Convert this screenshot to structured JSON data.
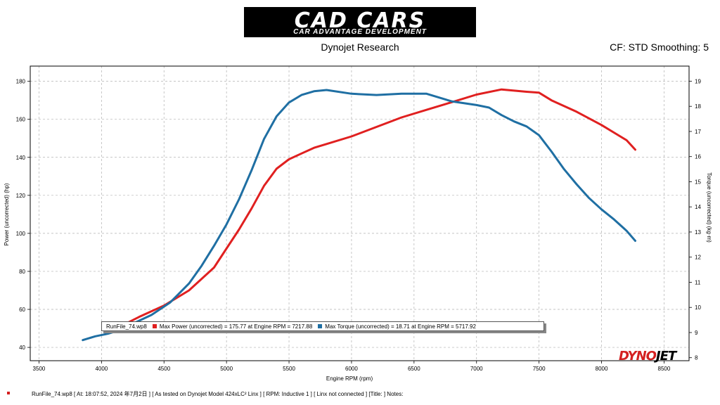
{
  "header": {
    "logo_main": "CAD CARS",
    "logo_sub": "CAR ADVANTAGE DEVELOPMENT",
    "subtitle": "Dynojet Research",
    "cf": "CF: STD Smoothing: 5"
  },
  "legend": {
    "file": "RunFile_74.wp8",
    "power": "Max Power (uncorrected) = 175.77 at Engine RPM = 7217.88",
    "torque": "Max Torque (uncorrected) = 18.71 at Engine RPM = 5717.92"
  },
  "footer": "RunFile_74.wp8  [  At:  18:07:52,  2024 年7月2日  ] [ As tested on Dynojet Model 424xLC² Linx  ] [ RPM: Inductive 1  ] [ Linx not connected  ] [Title:  ]   Notes:",
  "brand": {
    "a": "DYNO",
    "b": "JET"
  },
  "colors": {
    "power": "#e02020",
    "torque": "#1f6fa3",
    "grid": "#b0b0b0"
  },
  "chart_data": {
    "type": "line",
    "xlabel": "Engine RPM (rpm)",
    "ylabel_left": "Power (uncorrected) (hp)",
    "ylabel_right": "Torque (uncorrected) (kg·m)",
    "xlim": [
      3430,
      8700
    ],
    "ylim_left": [
      33,
      188
    ],
    "ylim_right": [
      7.88,
      19.6
    ],
    "x_ticks": [
      3500,
      4000,
      4500,
      5000,
      5500,
      6000,
      6500,
      7000,
      7500,
      8000,
      8500
    ],
    "y_left_ticks": [
      40,
      60,
      80,
      100,
      120,
      140,
      160,
      180
    ],
    "y_right_ticks": [
      8,
      9,
      10,
      11,
      12,
      13,
      14,
      15,
      16,
      17,
      18,
      19
    ],
    "grid": true,
    "series": [
      {
        "name": "Max Power (uncorrected)",
        "axis": "left",
        "x": [
          4150,
          4300,
          4500,
          4700,
          4900,
          5000,
          5100,
          5200,
          5300,
          5400,
          5500,
          5600,
          5700,
          5800,
          6000,
          6200,
          6400,
          6600,
          6800,
          7000,
          7200,
          7400,
          7500,
          7600,
          7800,
          8000,
          8100,
          8200,
          8270
        ],
        "y": [
          51,
          56,
          62,
          70,
          82,
          92,
          102,
          113,
          125,
          134,
          139,
          142,
          145,
          147,
          151,
          156,
          161,
          165,
          169,
          173,
          175.7,
          174.5,
          174,
          170,
          164,
          157,
          153,
          149,
          144
        ]
      },
      {
        "name": "Max Torque (uncorrected)",
        "axis": "right",
        "x": [
          3850,
          3950,
          4050,
          4150,
          4250,
          4400,
          4550,
          4700,
          4800,
          4900,
          5000,
          5100,
          5200,
          5300,
          5400,
          5500,
          5600,
          5700,
          5800,
          6000,
          6200,
          6400,
          6600,
          6800,
          7000,
          7100,
          7200,
          7300,
          7400,
          7500,
          7600,
          7700,
          7800,
          7900,
          8000,
          8100,
          8200,
          8270
        ],
        "y": [
          8.7,
          8.85,
          8.95,
          9.1,
          9.35,
          9.7,
          10.2,
          10.95,
          11.65,
          12.45,
          13.3,
          14.3,
          15.45,
          16.7,
          17.6,
          18.15,
          18.45,
          18.6,
          18.65,
          18.5,
          18.45,
          18.5,
          18.5,
          18.2,
          18.05,
          17.95,
          17.65,
          17.4,
          17.2,
          16.85,
          16.2,
          15.5,
          14.9,
          14.35,
          13.9,
          13.5,
          13.05,
          12.65
        ]
      }
    ]
  }
}
